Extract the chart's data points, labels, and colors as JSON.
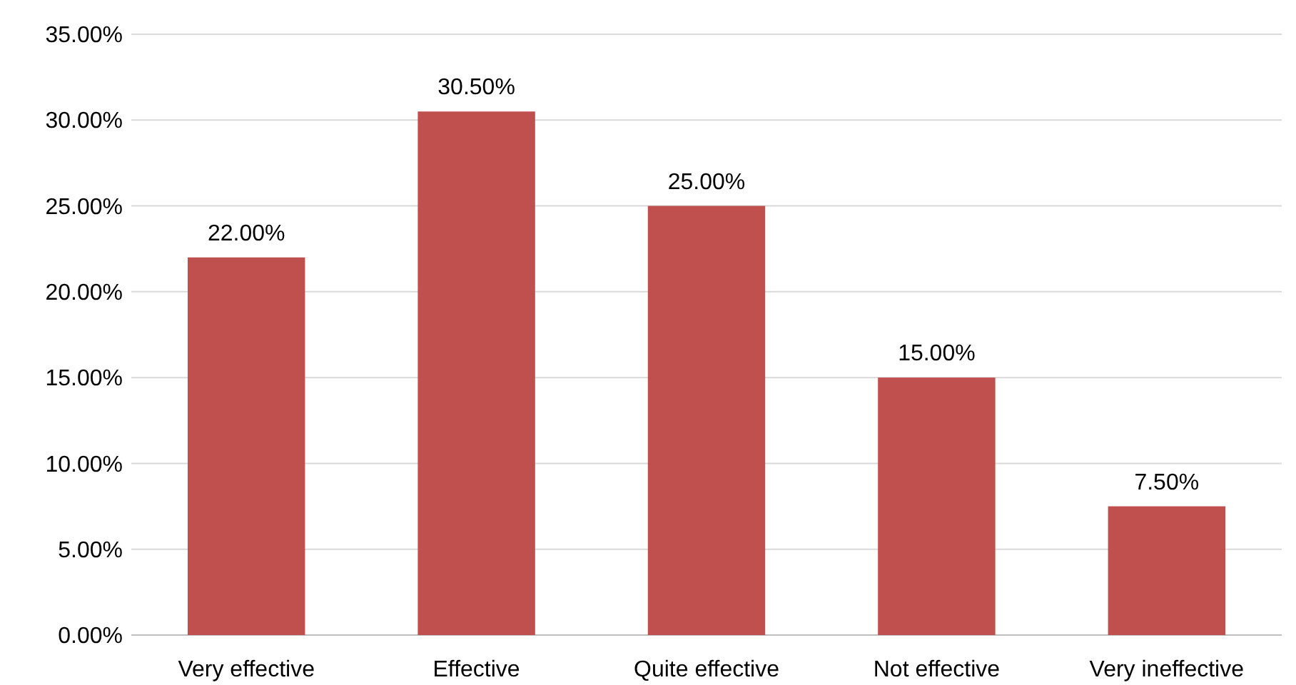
{
  "chart_data": {
    "type": "bar",
    "categories": [
      "Very effective",
      "Effective",
      "Quite effective",
      "Not effective",
      "Very ineffective"
    ],
    "values": [
      22,
      30.5,
      25,
      15,
      7.5
    ],
    "value_labels": [
      "22.00%",
      "30.50%",
      "25.00%",
      "15.00%",
      "7.50%"
    ],
    "color": "#c0504d",
    "ylim": [
      0,
      35
    ],
    "yticks": [
      {
        "value": 0,
        "label": "0.00%"
      },
      {
        "value": 5,
        "label": "5.00%"
      },
      {
        "value": 10,
        "label": "10.00%"
      },
      {
        "value": 15,
        "label": "15.00%"
      },
      {
        "value": 20,
        "label": "20.00%"
      },
      {
        "value": 25,
        "label": "25.00%"
      },
      {
        "value": 30,
        "label": "30.00%"
      },
      {
        "value": 35,
        "label": "35.00%"
      }
    ],
    "grid": "y"
  }
}
